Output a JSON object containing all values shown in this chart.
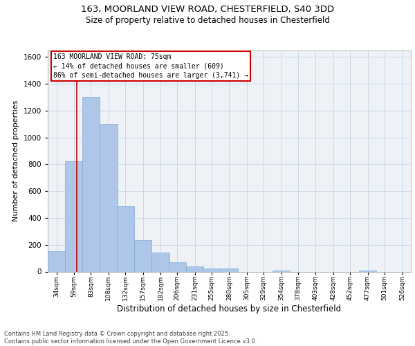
{
  "title_line1": "163, MOORLAND VIEW ROAD, CHESTERFIELD, S40 3DD",
  "title_line2": "Size of property relative to detached houses in Chesterfield",
  "xlabel": "Distribution of detached houses by size in Chesterfield",
  "ylabel": "Number of detached properties",
  "bin_labels": [
    "34sqm",
    "59sqm",
    "83sqm",
    "108sqm",
    "132sqm",
    "157sqm",
    "182sqm",
    "206sqm",
    "231sqm",
    "255sqm",
    "280sqm",
    "305sqm",
    "329sqm",
    "354sqm",
    "378sqm",
    "403sqm",
    "428sqm",
    "452sqm",
    "477sqm",
    "501sqm",
    "526sqm"
  ],
  "bar_values": [
    150,
    820,
    1300,
    1100,
    485,
    235,
    140,
    70,
    40,
    25,
    25,
    0,
    0,
    10,
    0,
    0,
    0,
    0,
    10,
    0,
    0
  ],
  "bar_color": "#aec6e8",
  "bar_edge_color": "#7dadd4",
  "grid_color": "#c8d8e8",
  "background_color": "#eef2f7",
  "red_line_x": 75,
  "bin_starts": [
    34,
    59,
    83,
    108,
    132,
    157,
    182,
    206,
    231,
    255,
    280,
    305,
    329,
    354,
    378,
    403,
    428,
    452,
    477,
    501,
    526
  ],
  "bin_width": 25,
  "ylim": [
    0,
    1650
  ],
  "yticks": [
    0,
    200,
    400,
    600,
    800,
    1000,
    1200,
    1400,
    1600
  ],
  "annotation_text": "163 MOORLAND VIEW ROAD: 75sqm\n← 14% of detached houses are smaller (609)\n86% of semi-detached houses are larger (3,741) →",
  "annotation_box_color": "#ffffff",
  "annotation_border_color": "#cc0000",
  "footer_text": "Contains HM Land Registry data © Crown copyright and database right 2025.\nContains public sector information licensed under the Open Government Licence v3.0.",
  "red_line_color": "#cc0000",
  "title_fontsize": 9.5,
  "subtitle_fontsize": 8.5,
  "ylabel_fontsize": 8,
  "xlabel_fontsize": 8.5,
  "ytick_fontsize": 7.5,
  "xtick_fontsize": 6.5,
  "annotation_fontsize": 7,
  "footer_fontsize": 6
}
